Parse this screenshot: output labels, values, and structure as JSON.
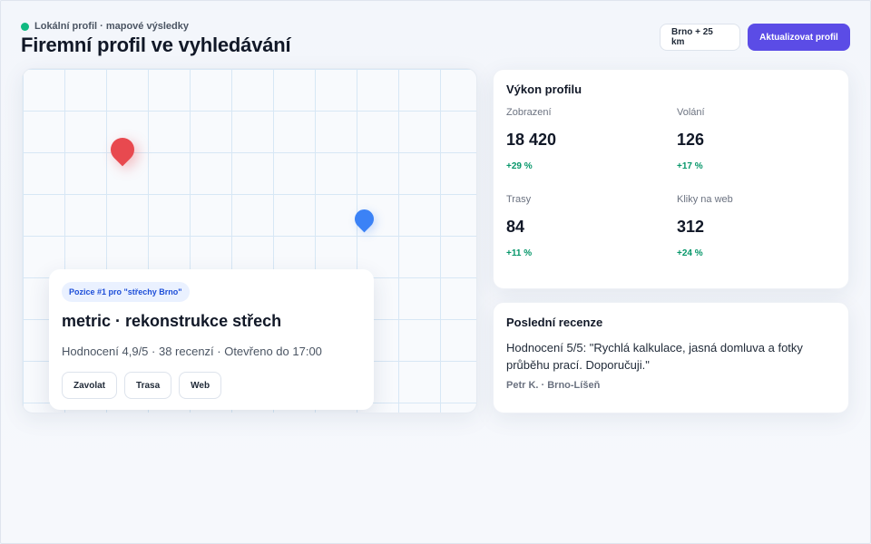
{
  "header": {
    "eyebrow": "Lokální profil · mapové výsledky",
    "title": "Firemní profil ve vyhledávání",
    "location_button": "Brno + 25 km",
    "update_button": "Aktualizovat profil"
  },
  "map": {
    "pins": [
      {
        "kind": "primary",
        "color": "#e8494f"
      },
      {
        "kind": "competitor",
        "color": "#3b82f6"
      }
    ],
    "place_card": {
      "badge": "Pozice #1 pro \"střechy Brno\"",
      "name": "metric · rekonstrukce střech",
      "meta": "Hodnocení 4,9/5 · 38 recenzí · Otevřeno do 17:00",
      "actions": [
        "Zavolat",
        "Trasa",
        "Web"
      ]
    }
  },
  "stats": {
    "title": "Výkon profilu",
    "items": [
      {
        "label": "Zobrazení",
        "value": "18 420",
        "delta": "+29 %"
      },
      {
        "label": "Volání",
        "value": "126",
        "delta": "+17 %"
      },
      {
        "label": "Trasy",
        "value": "84",
        "delta": "+11 %"
      },
      {
        "label": "Kliky na web",
        "value": "312",
        "delta": "+24 %"
      }
    ]
  },
  "reviews": {
    "title": "Poslední recenze",
    "text": "Hodnocení 5/5: \"Rychlá kalkulace, jasná domluva a fotky průběhu prací. Doporučuji.\"",
    "author": "Petr K. · Brno-Líšeň"
  },
  "colors": {
    "accent": "#5b4ce6",
    "status_dot": "#10b981",
    "positive": "#059669",
    "badge_text": "#1d4ed8"
  }
}
